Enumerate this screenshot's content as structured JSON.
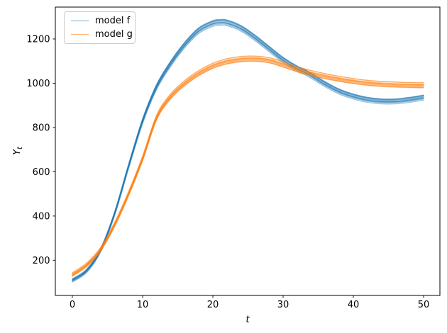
{
  "chart_data": {
    "type": "line",
    "title": "",
    "xlabel": "t",
    "ylabel": "Y_t",
    "ylabel_parts": {
      "base": "Y",
      "sub": "t"
    },
    "xlim": [
      -2.42,
      52.32
    ],
    "ylim": [
      41,
      1344
    ],
    "xticks": [
      0,
      10,
      20,
      30,
      40,
      50
    ],
    "yticks": [
      200,
      400,
      600,
      800,
      1000,
      1200
    ],
    "grid": false,
    "legend": {
      "location": "upper-left"
    },
    "x": [
      0,
      2,
      4,
      6,
      8,
      10,
      12,
      14,
      16,
      18,
      20,
      21,
      22,
      24,
      26,
      28,
      30,
      32,
      33,
      34,
      36,
      38,
      40,
      42,
      44,
      46,
      48,
      50
    ],
    "series": [
      {
        "name": "model f",
        "color": "#1f77b4",
        "values": [
          110,
          152,
          245,
          410,
          625,
          830,
          985,
          1090,
          1175,
          1240,
          1272,
          1277,
          1275,
          1250,
          1207,
          1157,
          1107,
          1068,
          1054,
          1036,
          997,
          964,
          942,
          927,
          920,
          920,
          927,
          937
        ]
      },
      {
        "name": "model g",
        "color": "#ff7f0e",
        "values": [
          135,
          178,
          248,
          360,
          500,
          660,
          845,
          940,
          1000,
          1045,
          1078,
          1089,
          1098,
          1108,
          1110,
          1103,
          1084,
          1062,
          1053,
          1045,
          1031,
          1019,
          1009,
          1001,
          996,
          993,
          991,
          990
        ]
      }
    ],
    "ensemble": {
      "lines_per_series": 11,
      "alpha": 0.45,
      "line_width": 1.3,
      "scale_spread": 0.006,
      "offset_spread": 8
    }
  }
}
